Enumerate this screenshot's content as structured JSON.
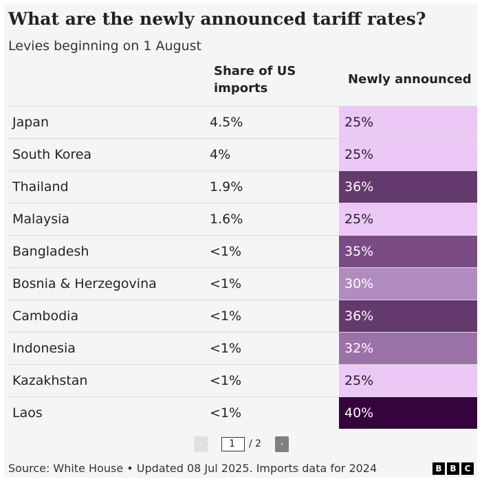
{
  "title": "What are the newly announced tariff rates?",
  "subtitle": "Levies beginning on 1 August",
  "chart_data": {
    "type": "table",
    "columns": [
      "",
      "Share of US imports",
      "Newly announced"
    ],
    "rows": [
      {
        "country": "Japan",
        "share": "4.5%",
        "rate": "25%",
        "rate_value": 25,
        "color": "#ebc8f5",
        "text": "#222"
      },
      {
        "country": "South Korea",
        "share": "4%",
        "rate": "25%",
        "rate_value": 25,
        "color": "#ebc8f5",
        "text": "#222"
      },
      {
        "country": "Thailand",
        "share": "1.9%",
        "rate": "36%",
        "rate_value": 36,
        "color": "#643a6e",
        "text": "#fff"
      },
      {
        "country": "Malaysia",
        "share": "1.6%",
        "rate": "25%",
        "rate_value": 25,
        "color": "#ebc8f5",
        "text": "#222"
      },
      {
        "country": "Bangladesh",
        "share": "<1%",
        "rate": "35%",
        "rate_value": 35,
        "color": "#7a4b85",
        "text": "#fff"
      },
      {
        "country": "Bosnia & Herzegovina",
        "share": "<1%",
        "rate": "30%",
        "rate_value": 30,
        "color": "#b08cc0",
        "text": "#fff"
      },
      {
        "country": "Cambodia",
        "share": "<1%",
        "rate": "36%",
        "rate_value": 36,
        "color": "#643a6e",
        "text": "#fff"
      },
      {
        "country": "Indonesia",
        "share": "<1%",
        "rate": "32%",
        "rate_value": 32,
        "color": "#9b72a8",
        "text": "#fff"
      },
      {
        "country": "Kazakhstan",
        "share": "<1%",
        "rate": "25%",
        "rate_value": 25,
        "color": "#ebc8f5",
        "text": "#222"
      },
      {
        "country": "Laos",
        "share": "<1%",
        "rate": "40%",
        "rate_value": 40,
        "color": "#36043d",
        "text": "#fff"
      }
    ]
  },
  "headers": {
    "share_line1": "Share of US",
    "share_line2": "imports",
    "rate": "Newly announced"
  },
  "pager": {
    "prev": "‹",
    "page": "1",
    "total": "/ 2",
    "next": "›"
  },
  "source": "Source: White House • Updated 08 Jul 2025. Imports data for 2024",
  "logo": [
    "B",
    "B",
    "C"
  ]
}
